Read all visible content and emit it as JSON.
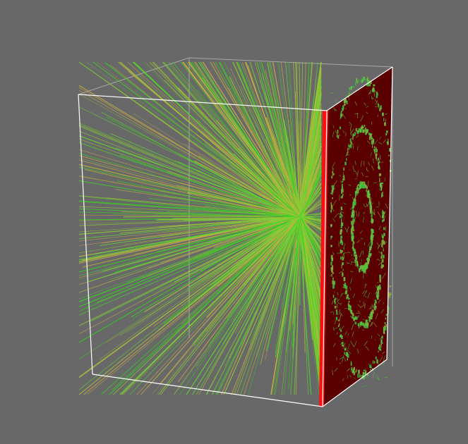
{
  "scene": {
    "background_color": "#686868",
    "box_edge_color": "#ffffff",
    "track_colors": [
      "#33cc22",
      "#44d62c",
      "#8fcc33",
      "#c8b43c",
      "#d2a850",
      "#66dd33"
    ],
    "side_panel_color": "#5a0000",
    "side_panel_edge_color": "#ff1a1a",
    "hit_colors": [
      "#3db83d",
      "#5ac845",
      "#7fae3a"
    ]
  }
}
